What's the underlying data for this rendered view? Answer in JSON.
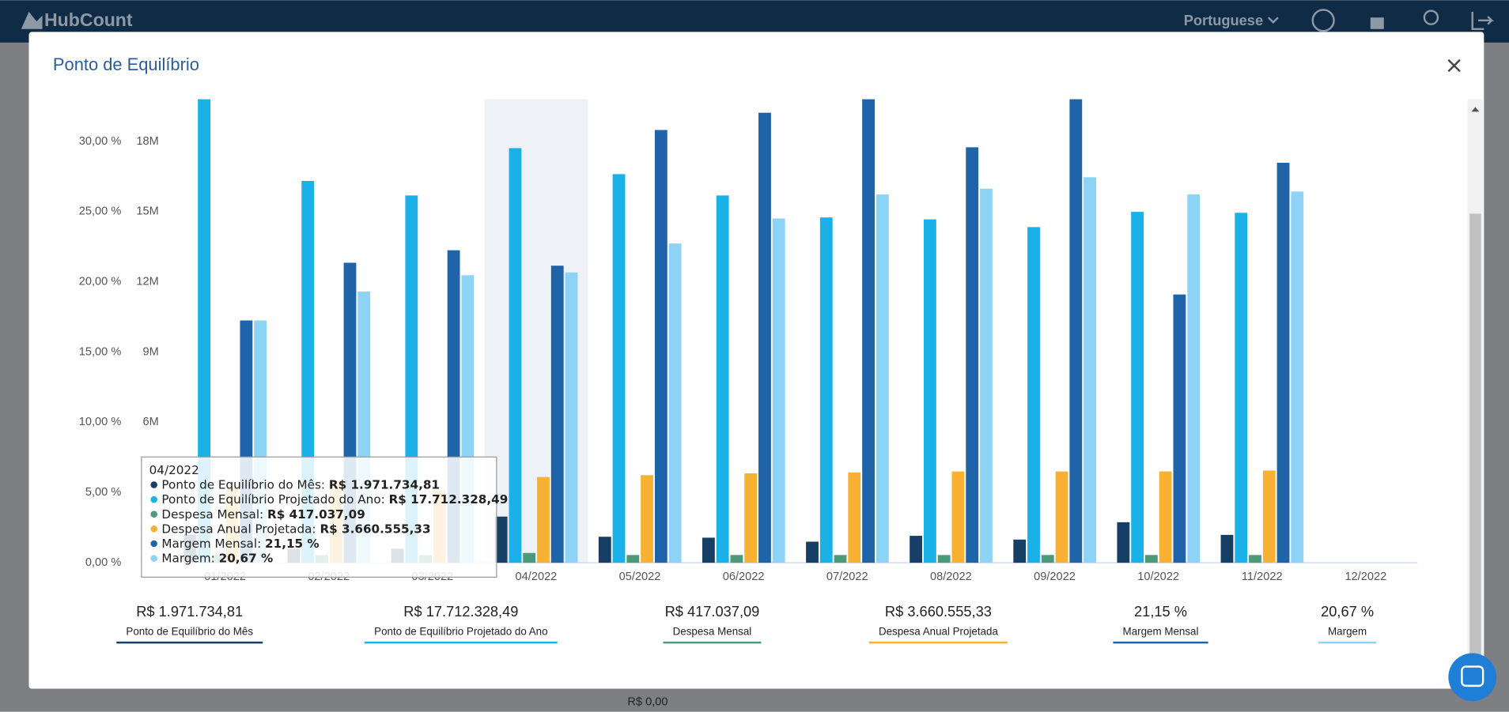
{
  "app": {
    "logo": "HubCount",
    "language": "Portuguese",
    "background_label": "R$ 0,00"
  },
  "modal": {
    "title": "Ponto de Equilíbrio"
  },
  "chart_data": {
    "type": "bar",
    "categories": [
      "01/2022",
      "02/2022",
      "03/2022",
      "04/2022",
      "05/2022",
      "06/2022",
      "07/2022",
      "08/2022",
      "09/2022",
      "10/2022",
      "11/2022",
      "12/2022"
    ],
    "series": [
      {
        "name": "Ponto de Equilíbrio do Mês",
        "color": "#173f66",
        "axis": "y2",
        "values": [
          1200000,
          600000,
          600000,
          1971734.81,
          1110000,
          1070000,
          900000,
          1150000,
          990000,
          1730000,
          1190000,
          null
        ]
      },
      {
        "name": "Ponto de Equilíbrio Projetado do Ano",
        "color": "#1ab0e8",
        "axis": "y2",
        "values": [
          19800000,
          16310000,
          15690000,
          17712328.49,
          16600000,
          15690000,
          14750000,
          14670000,
          14340000,
          14990000,
          14950000,
          null
        ]
      },
      {
        "name": "Despesa Mensal",
        "color": "#4c9a7a",
        "axis": "y2",
        "values": [
          330000,
          330000,
          330000,
          417037.09,
          330000,
          330000,
          330000,
          330000,
          330000,
          330000,
          330000,
          null
        ]
      },
      {
        "name": "Despesa Anual Projetada",
        "color": "#f8b133",
        "axis": "y2",
        "values": [
          3300000,
          3500000,
          3100000,
          3660555.33,
          3740000,
          3820000,
          3860000,
          3900000,
          3900000,
          3900000,
          3940000,
          null
        ]
      },
      {
        "name": "Margem Mensal",
        "color": "#1f63a8",
        "values": [
          17.25,
          21.36,
          22.25,
          21.15,
          30.81,
          32.04,
          33,
          29.58,
          33,
          19.1,
          28.48,
          null
        ]
      },
      {
        "name": "Margem",
        "color": "#8dd3f5",
        "values": [
          17.25,
          19.31,
          20.47,
          20.67,
          22.73,
          24.51,
          26.22,
          26.63,
          27.45,
          26.22,
          26.43,
          null
        ]
      }
    ],
    "ylim": [
      0,
      33
    ],
    "yticks": [
      {
        "value": 0,
        "label": "0,00 %"
      },
      {
        "value": 5,
        "label": "5,00 %"
      },
      {
        "value": 10,
        "label": "10,00 %"
      },
      {
        "value": 15,
        "label": "15,00 %"
      },
      {
        "value": 20,
        "label": "20,00 %"
      },
      {
        "value": 25,
        "label": "25,00 %"
      },
      {
        "value": 30,
        "label": "30,00 %"
      }
    ],
    "y2lim": [
      0,
      19800000
    ],
    "y2ticks": [
      {
        "value": 6000000,
        "label": "6M"
      },
      {
        "value": 9000000,
        "label": "9M"
      },
      {
        "value": 12000000,
        "label": "12M"
      },
      {
        "value": 15000000,
        "label": "15M"
      },
      {
        "value": 18000000,
        "label": "18M"
      }
    ],
    "highlight_category": "04/2022"
  },
  "summary": {
    "values": [
      "R$ 1.971.734,81",
      "R$ 17.712.328,49",
      "R$ 417.037,09",
      "R$ 3.660.555,33",
      "21,15 %",
      "20,67 %"
    ]
  }
}
